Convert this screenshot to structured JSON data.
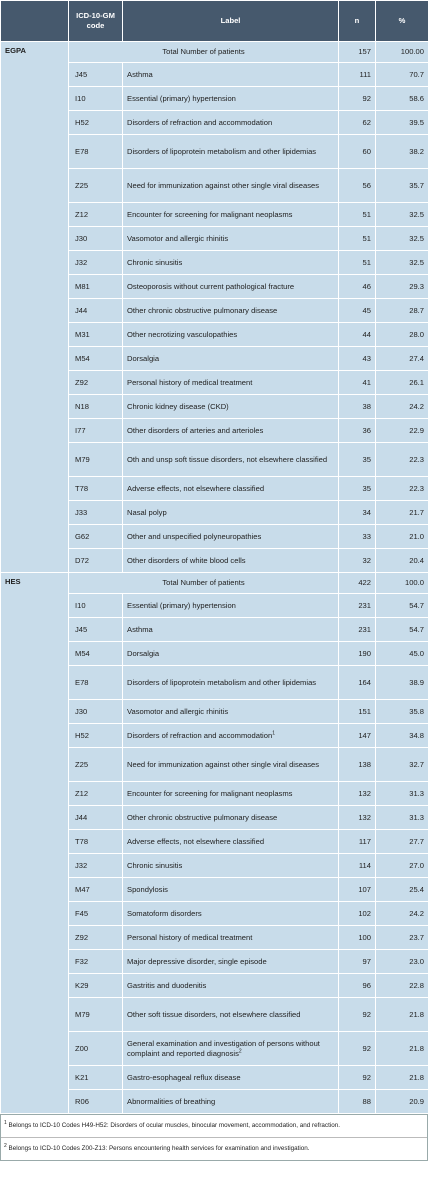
{
  "header": {
    "code": "ICD-10-GM code",
    "label": "Label",
    "n": "n",
    "pct": "%"
  },
  "groups": [
    {
      "name": "EGPA",
      "total": {
        "label": "Total Number of patients",
        "n": 157,
        "pct": "100.00"
      },
      "rows": [
        [
          "J45",
          "Asthma",
          111,
          "70.7"
        ],
        [
          "I10",
          "Essential (primary) hypertension",
          92,
          "58.6"
        ],
        [
          "H52",
          "Disorders of refraction and accommodation",
          62,
          "39.5"
        ],
        [
          "E78",
          "Disorders of lipoprotein metabolism and other lipidemias",
          60,
          "38.2"
        ],
        [
          "Z25",
          "Need for immunization against other single viral diseases",
          56,
          "35.7"
        ],
        [
          "Z12",
          "Encounter for screening for malignant neoplasms",
          51,
          "32.5"
        ],
        [
          "J30",
          "Vasomotor and allergic rhinitis",
          51,
          "32.5"
        ],
        [
          "J32",
          "Chronic sinusitis",
          51,
          "32.5"
        ],
        [
          "M81",
          "Osteoporosis without current pathological fracture",
          46,
          "29.3"
        ],
        [
          "J44",
          "Other chronic obstructive pulmonary disease",
          45,
          "28.7"
        ],
        [
          "M31",
          "Other necrotizing vasculopathies",
          44,
          "28.0"
        ],
        [
          "M54",
          "Dorsalgia",
          43,
          "27.4"
        ],
        [
          "Z92",
          "Personal history of medical treatment",
          41,
          "26.1"
        ],
        [
          "N18",
          "Chronic kidney disease (CKD)",
          38,
          "24.2"
        ],
        [
          "I77",
          "Other disorders of arteries and arterioles",
          36,
          "22.9"
        ],
        [
          "M79",
          "Oth and unsp soft tissue disorders, not elsewhere classified",
          35,
          "22.3"
        ],
        [
          "T78",
          "Adverse effects, not elsewhere classified",
          35,
          "22.3"
        ],
        [
          "J33",
          "Nasal polyp",
          34,
          "21.7"
        ],
        [
          "G62",
          "Other and unspecified polyneuropathies",
          33,
          "21.0"
        ],
        [
          "D72",
          "Other disorders of white blood cells",
          32,
          "20.4"
        ]
      ]
    },
    {
      "name": "HES",
      "total": {
        "label": "Total Number of patients",
        "n": 422,
        "pct": "100.0"
      },
      "rows": [
        [
          "I10",
          "Essential (primary) hypertension",
          231,
          "54.7"
        ],
        [
          "J45",
          "Asthma",
          231,
          "54.7"
        ],
        [
          "M54",
          "Dorsalgia",
          190,
          "45.0"
        ],
        [
          "E78",
          "Disorders of lipoprotein metabolism and other lipidemias",
          164,
          "38.9"
        ],
        [
          "J30",
          "Vasomotor and allergic rhinitis",
          151,
          "35.8"
        ],
        [
          "H52",
          "Disorders of refraction and accommodation",
          147,
          "34.8",
          "1"
        ],
        [
          "Z25",
          "Need for immunization against other single viral diseases",
          138,
          "32.7"
        ],
        [
          "Z12",
          "Encounter for screening for malignant neoplasms",
          132,
          "31.3"
        ],
        [
          "J44",
          "Other chronic obstructive pulmonary disease",
          132,
          "31.3"
        ],
        [
          "T78",
          "Adverse effects, not elsewhere classified",
          117,
          "27.7"
        ],
        [
          "J32",
          "Chronic sinusitis",
          114,
          "27.0"
        ],
        [
          "M47",
          "Spondylosis",
          107,
          "25.4"
        ],
        [
          "F45",
          "Somatoform disorders",
          102,
          "24.2"
        ],
        [
          "Z92",
          "Personal history of medical treatment",
          100,
          "23.7"
        ],
        [
          "F32",
          "Major depressive disorder, single episode",
          97,
          "23.0"
        ],
        [
          "K29",
          "Gastritis and duodenitis",
          96,
          "22.8"
        ],
        [
          "M79",
          "Other soft tissue disorders, not elsewhere classified",
          92,
          "21.8"
        ],
        [
          "Z00",
          "General examination and investigation of persons without complaint and reported diagnosis",
          92,
          "21.8",
          "2"
        ],
        [
          "K21",
          "Gastro-esophageal reflux disease",
          92,
          "21.8"
        ],
        [
          "R06",
          "Abnormalities of breathing",
          88,
          "20.9"
        ]
      ]
    }
  ],
  "footnotes": [
    {
      "marker": "1",
      "text": "Belongs to ICD-10 Codes H49-H52: Disorders of ocular muscles, binocular movement, accommodation, and refraction."
    },
    {
      "marker": "2",
      "text": "Belongs to ICD-10 Codes Z00-Z13: Persons encountering health services for examination and investigation."
    }
  ]
}
